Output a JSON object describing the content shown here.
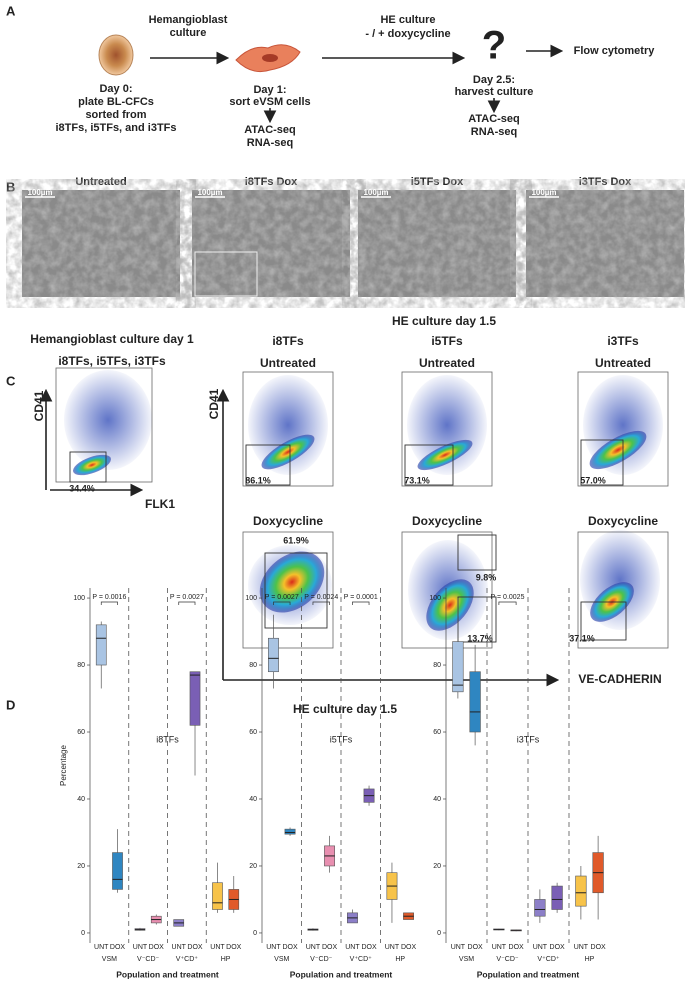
{
  "panel_a": {
    "label": "A",
    "day0": [
      "Day 0:",
      "plate BL-CFCs",
      "sorted from",
      "i8TFs, i5TFs, and i3TFs"
    ],
    "step1": [
      "Hemangioblast",
      "culture"
    ],
    "day1": [
      "Day 1:",
      "sort eVSM cells"
    ],
    "day1_assays": [
      "ATAC-seq",
      "RNA-seq"
    ],
    "step2": [
      "HE culture",
      "- / + doxycycline"
    ],
    "unknown": "?",
    "readout": "Flow cytometry",
    "day25": [
      "Day 2.5:",
      "harvest culture"
    ],
    "day25_assays": [
      "ATAC-seq",
      "RNA-seq"
    ]
  },
  "panel_b": {
    "label": "B",
    "images": [
      {
        "title": "Untreated",
        "scale": "100µm"
      },
      {
        "title": "i8TFs Dox",
        "scale": "100µm"
      },
      {
        "title": "i5TFs Dox",
        "scale": "100µm"
      },
      {
        "title": "i3TFs Dox",
        "scale": "100µm"
      }
    ]
  },
  "panel_c": {
    "label": "C",
    "left_title": [
      "Hemangioblast culture day 1",
      "i8TFs, i5TFs, i3TFs"
    ],
    "left_gate": "34.4%",
    "left_y": "CD41",
    "left_x": "FLK1",
    "title": "HE culture day 1.5",
    "columns": [
      {
        "name": "i8TFs",
        "untreated": "Untreated",
        "untreated_gates": [
          "86.1%"
        ],
        "treated": "Doxycycline",
        "treated_gates": [
          "61.9%"
        ]
      },
      {
        "name": "i5TFs",
        "untreated": "Untreated",
        "untreated_gates": [
          "73.1%"
        ],
        "treated": "Doxycycline",
        "treated_gates": [
          "9.8%",
          "13.7%"
        ]
      },
      {
        "name": "i3TFs",
        "untreated": "Untreated",
        "untreated_gates": [
          "57.0%"
        ],
        "treated": "Doxycycline",
        "treated_gates": [
          "37.1%"
        ]
      }
    ],
    "y_axis": "CD41",
    "x_axis": "VE-CADHERIN"
  },
  "panel_d": {
    "label": "D",
    "title": "HE culture day 1.5"
  },
  "chart_data": [
    {
      "type": "box",
      "title": "i8TFs",
      "ylabel": "Percentage",
      "xlabel": "Population and treatment",
      "ylim": [
        -3,
        103
      ],
      "yticks": [
        0,
        20,
        40,
        60,
        80,
        100
      ],
      "groups": [
        {
          "name": "VSM",
          "pvalue": "P = 0.0016",
          "boxes": [
            {
              "label": "UNT",
              "color": "#a9c4e3",
              "min": 73,
              "q1": 80,
              "median": 88,
              "q3": 92,
              "max": 93
            },
            {
              "label": "DOX",
              "color": "#2f86c1",
              "min": 12,
              "q1": 13,
              "median": 16,
              "q3": 24,
              "max": 31
            }
          ]
        },
        {
          "name": "V⁻CD⁻",
          "boxes": [
            {
              "label": "UNT",
              "color": "#b9a3d1",
              "min": 0.7,
              "q1": 0.8,
              "median": 1,
              "q3": 1.3,
              "max": 1.5
            },
            {
              "label": "DOX",
              "color": "#e88fb0",
              "min": 2.5,
              "q1": 3,
              "median": 4,
              "q3": 5,
              "max": 5.5
            }
          ]
        },
        {
          "name": "V⁺CD⁺",
          "pvalue": "P = 0.0027",
          "boxes": [
            {
              "label": "UNT",
              "color": "#8c7fc8",
              "min": 2,
              "q1": 2,
              "median": 3,
              "q3": 4,
              "max": 4
            },
            {
              "label": "DOX",
              "color": "#7a5fb5",
              "min": 47,
              "q1": 62,
              "median": 77,
              "q3": 78,
              "max": 78
            }
          ]
        },
        {
          "name": "HP",
          "boxes": [
            {
              "label": "UNT",
              "color": "#f7c34a",
              "min": 6,
              "q1": 7,
              "median": 9,
              "q3": 15,
              "max": 21
            },
            {
              "label": "DOX",
              "color": "#e05a2a",
              "min": 6,
              "q1": 7,
              "median": 10,
              "q3": 13,
              "max": 17
            }
          ]
        }
      ]
    },
    {
      "type": "box",
      "title": "i5TFs",
      "xlabel": "Population and treatment",
      "ylim": [
        -3,
        103
      ],
      "yticks": [
        0,
        20,
        40,
        60,
        80,
        100
      ],
      "groups": [
        {
          "name": "VSM",
          "pvalue": "P = 0.0027",
          "boxes": [
            {
              "label": "UNT",
              "color": "#a9c4e3",
              "min": 73,
              "q1": 78,
              "median": 82,
              "q3": 88,
              "max": 95
            },
            {
              "label": "DOX",
              "color": "#2f86c1",
              "min": 29,
              "q1": 29.5,
              "median": 30,
              "q3": 31,
              "max": 31.5
            }
          ]
        },
        {
          "name": "V⁻CD⁻",
          "pvalue": "P = 0.0024",
          "boxes": [
            {
              "label": "UNT",
              "color": "#b9a3d1",
              "min": 0.7,
              "q1": 0.8,
              "median": 1,
              "q3": 1.2,
              "max": 1.4
            },
            {
              "label": "DOX",
              "color": "#e88fb0",
              "min": 18,
              "q1": 20,
              "median": 23,
              "q3": 26,
              "max": 29
            }
          ]
        },
        {
          "name": "V⁺CD⁺",
          "pvalue": "P = 0.0001",
          "boxes": [
            {
              "label": "UNT",
              "color": "#8c7fc8",
              "min": 3,
              "q1": 3,
              "median": 4.5,
              "q3": 6,
              "max": 7
            },
            {
              "label": "DOX",
              "color": "#7a5fb5",
              "min": 38,
              "q1": 39,
              "median": 41,
              "q3": 43,
              "max": 44
            }
          ]
        },
        {
          "name": "HP",
          "boxes": [
            {
              "label": "UNT",
              "color": "#f7c34a",
              "min": 3,
              "q1": 10,
              "median": 14,
              "q3": 18,
              "max": 21
            },
            {
              "label": "DOX",
              "color": "#e05a2a",
              "min": 4,
              "q1": 4,
              "median": 5,
              "q3": 6,
              "max": 6
            }
          ]
        }
      ]
    },
    {
      "type": "box",
      "title": "i3TFs",
      "xlabel": "Population and treatment",
      "ylim": [
        -3,
        103
      ],
      "yticks": [
        0,
        20,
        40,
        60,
        80,
        100
      ],
      "groups": [
        {
          "name": "VSM",
          "boxes": [
            {
              "label": "UNT",
              "color": "#a9c4e3",
              "min": 70,
              "q1": 72,
              "median": 74,
              "q3": 87,
              "max": 100
            },
            {
              "label": "DOX",
              "color": "#2f86c1",
              "min": 56,
              "q1": 60,
              "median": 66,
              "q3": 78,
              "max": 86
            }
          ]
        },
        {
          "name": "V⁻CD⁻",
          "pvalue": "P = 0.0025",
          "boxes": [
            {
              "label": "UNT",
              "color": "#b9a3d1",
              "min": 0.8,
              "q1": 0.9,
              "median": 1,
              "q3": 1.2,
              "max": 1.3
            },
            {
              "label": "DOX",
              "color": "#e88fb0",
              "min": 0.5,
              "q1": 0.6,
              "median": 0.8,
              "q3": 0.9,
              "max": 1
            }
          ]
        },
        {
          "name": "V⁺CD⁺",
          "boxes": [
            {
              "label": "UNT",
              "color": "#8c7fc8",
              "min": 3,
              "q1": 5,
              "median": 7,
              "q3": 10,
              "max": 13
            },
            {
              "label": "DOX",
              "color": "#7a5fb5",
              "min": 6,
              "q1": 7,
              "median": 10,
              "q3": 14,
              "max": 15
            }
          ]
        },
        {
          "name": "HP",
          "boxes": [
            {
              "label": "UNT",
              "color": "#f7c34a",
              "min": 4,
              "q1": 8,
              "median": 12,
              "q3": 17,
              "max": 20
            },
            {
              "label": "DOX",
              "color": "#e05a2a",
              "min": 4,
              "q1": 12,
              "median": 18,
              "q3": 24,
              "max": 29
            }
          ]
        }
      ]
    }
  ]
}
